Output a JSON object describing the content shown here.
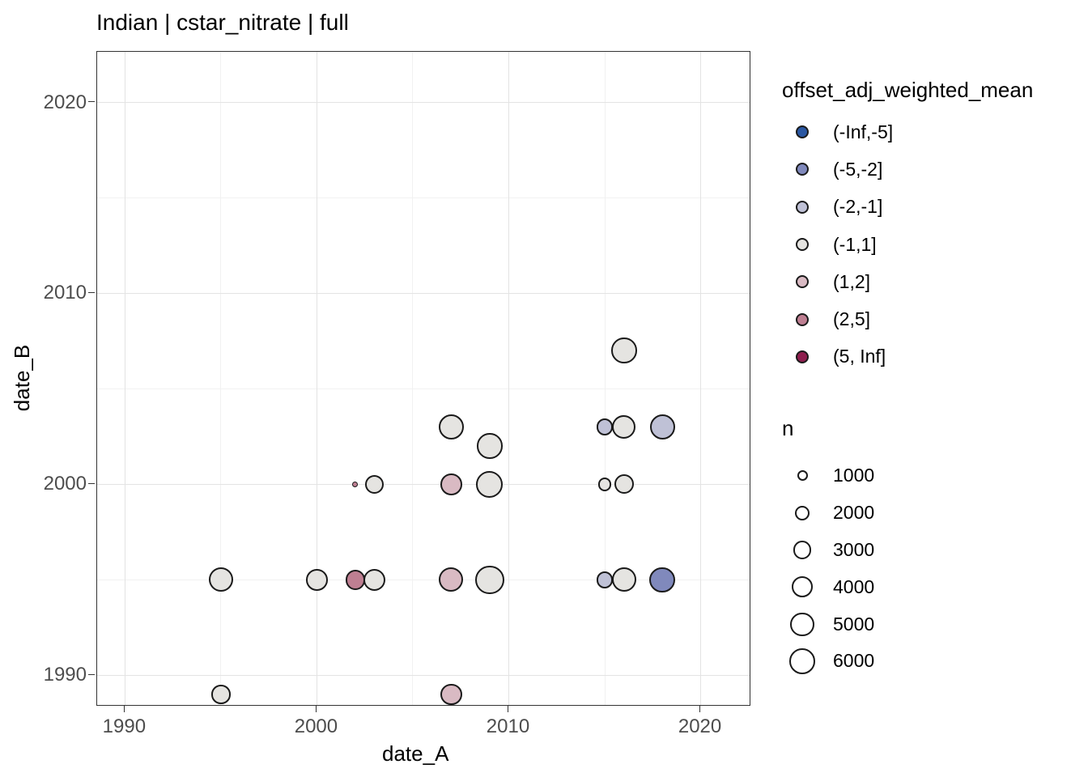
{
  "chart_data": {
    "type": "scatter",
    "title": "Indian | cstar_nitrate | full",
    "xlabel": "date_A",
    "ylabel": "date_B",
    "xlim": [
      1988.55,
      2022.55
    ],
    "ylim": [
      1988.45,
      2022.65
    ],
    "x_major_ticks": [
      1990,
      2000,
      2010,
      2020
    ],
    "x_minor_ticks": [
      1995,
      2005,
      2015
    ],
    "y_major_ticks": [
      1990,
      2000,
      2010,
      2020
    ],
    "y_minor_ticks": [
      1995,
      2005,
      2015
    ],
    "grid": "major+minor, light gray on white, dark panel border (ggplot theme_bw)",
    "color_legend": {
      "title": "offset_adj_weighted_mean",
      "position": "right",
      "bins": [
        {
          "label": "(-Inf,-5]",
          "color": "#2A57A2"
        },
        {
          "label": "(-5,-2]",
          "color": "#8089BC"
        },
        {
          "label": "(-2,-1]",
          "color": "#BFC1D6"
        },
        {
          "label": "(-1,1]",
          "color": "#E5E4E1"
        },
        {
          "label": "(1,2]",
          "color": "#D9BAC3"
        },
        {
          "label": "(2,5]",
          "color": "#BE7F92"
        },
        {
          "label": "(5, Inf]",
          "color": "#8E1E4E"
        }
      ]
    },
    "size_legend": {
      "title": "n",
      "values": [
        1000,
        2000,
        3000,
        4000,
        5000,
        6000
      ],
      "radius_px_formula": "6.5 * sqrt(n/1000)"
    },
    "points": [
      {
        "date_A": 1995,
        "date_B": 1989,
        "n": 3200,
        "bin": "(-1,1]"
      },
      {
        "date_A": 1995,
        "date_B": 1995,
        "n": 5300,
        "bin": "(-1,1]"
      },
      {
        "date_A": 2000,
        "date_B": 1995,
        "n": 4200,
        "bin": "(-1,1]"
      },
      {
        "date_A": 2002,
        "date_B": 1995,
        "n": 3500,
        "bin": "(2,5]"
      },
      {
        "date_A": 2002,
        "date_B": 2000,
        "n": 300,
        "bin": "(2,5]"
      },
      {
        "date_A": 2003,
        "date_B": 1995,
        "n": 4400,
        "bin": "(-1,1]"
      },
      {
        "date_A": 2003,
        "date_B": 2000,
        "n": 3200,
        "bin": "(-1,1]"
      },
      {
        "date_A": 2007,
        "date_B": 1989,
        "n": 4200,
        "bin": "(1,2]"
      },
      {
        "date_A": 2007,
        "date_B": 1995,
        "n": 5300,
        "bin": "(1,2]"
      },
      {
        "date_A": 2007,
        "date_B": 2000,
        "n": 4200,
        "bin": "(1,2]"
      },
      {
        "date_A": 2007,
        "date_B": 2003,
        "n": 5900,
        "bin": "(-1,1]"
      },
      {
        "date_A": 2009,
        "date_B": 1995,
        "n": 7500,
        "bin": "(-1,1]"
      },
      {
        "date_A": 2009,
        "date_B": 2000,
        "n": 6600,
        "bin": "(-1,1]"
      },
      {
        "date_A": 2009,
        "date_B": 2002,
        "n": 5900,
        "bin": "(-1,1]"
      },
      {
        "date_A": 2015,
        "date_B": 1995,
        "n": 2600,
        "bin": "(-2,-1]"
      },
      {
        "date_A": 2015,
        "date_B": 2000,
        "n": 1600,
        "bin": "(-1,1]"
      },
      {
        "date_A": 2015,
        "date_B": 2003,
        "n": 2600,
        "bin": "(-2,-1]"
      },
      {
        "date_A": 2016,
        "date_B": 1995,
        "n": 5300,
        "bin": "(-1,1]"
      },
      {
        "date_A": 2016,
        "date_B": 2000,
        "n": 3400,
        "bin": "(-1,1]"
      },
      {
        "date_A": 2016,
        "date_B": 2003,
        "n": 5100,
        "bin": "(-1,1]"
      },
      {
        "date_A": 2016,
        "date_B": 2007,
        "n": 5900,
        "bin": "(-1,1]"
      },
      {
        "date_A": 2018,
        "date_B": 1995,
        "n": 5900,
        "bin": "(-5,-2]"
      },
      {
        "date_A": 2018,
        "date_B": 2003,
        "n": 5700,
        "bin": "(-2,-1]"
      }
    ],
    "theme_colors": {
      "panel_border": "#333333",
      "grid_major": "#e3e3e3",
      "grid_minor": "#f1f1f1",
      "tick_label": "#4d4d4d",
      "point_stroke": "#1a1a1a",
      "size_key_fill": "#ffffff"
    }
  }
}
